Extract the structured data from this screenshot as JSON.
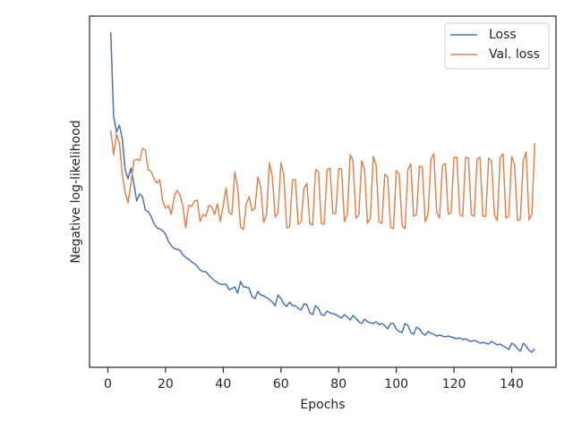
{
  "chart_data": {
    "type": "line",
    "xlabel": "Epochs",
    "ylabel": "Negative log-likelihood",
    "xlim": [
      -6.35,
      155.35
    ],
    "xticks": [
      0,
      20,
      40,
      60,
      80,
      100,
      120,
      140
    ],
    "ylim": [
      0,
      393
    ],
    "legend": "upper right",
    "grid": false,
    "x": [
      1,
      2,
      3,
      4,
      5,
      6,
      7,
      8,
      9,
      10,
      11,
      12,
      13,
      14,
      15,
      16,
      17,
      18,
      19,
      20,
      21,
      22,
      23,
      24,
      25,
      26,
      27,
      28,
      29,
      30,
      31,
      32,
      33,
      34,
      35,
      36,
      37,
      38,
      39,
      40,
      41,
      42,
      43,
      44,
      45,
      46,
      47,
      48,
      49,
      50,
      51,
      52,
      53,
      54,
      55,
      56,
      57,
      58,
      59,
      60,
      61,
      62,
      63,
      64,
      65,
      66,
      67,
      68,
      69,
      70,
      71,
      72,
      73,
      74,
      75,
      76,
      77,
      78,
      79,
      80,
      81,
      82,
      83,
      84,
      85,
      86,
      87,
      88,
      89,
      90,
      91,
      92,
      93,
      94,
      95,
      96,
      97,
      98,
      99,
      100,
      101,
      102,
      103,
      104,
      105,
      106,
      107,
      108,
      109,
      110,
      111,
      112,
      113,
      114,
      115,
      116,
      117,
      118,
      119,
      120,
      121,
      122,
      123,
      124,
      125,
      126,
      127,
      128,
      129,
      130,
      131,
      132,
      133,
      134,
      135,
      136,
      137,
      138,
      139,
      140,
      141,
      142,
      143,
      144,
      145,
      146,
      147,
      148
    ],
    "series": [
      {
        "name": "Loss",
        "color": "#4c72b0",
        "values": [
          375,
          281,
          263,
          271,
          256,
          221,
          211,
          223,
          206,
          186,
          194,
          191,
          176,
          174,
          169,
          161,
          156,
          155,
          153,
          149,
          141,
          136,
          133,
          132,
          131,
          126,
          123,
          121,
          118,
          116,
          113,
          109,
          107,
          107,
          103,
          100,
          97,
          95,
          93,
          93,
          93,
          87,
          88,
          90,
          83,
          96,
          90,
          90,
          88,
          79,
          77,
          85,
          81,
          80,
          78,
          76,
          73,
          69,
          81,
          77,
          71,
          68,
          73,
          69,
          69,
          66,
          64,
          71,
          70,
          61,
          59,
          69,
          66,
          59,
          58,
          63,
          61,
          60,
          59,
          57,
          55,
          59,
          56,
          53,
          58,
          55,
          51,
          49,
          54,
          51,
          50,
          49,
          51,
          48,
          49,
          47,
          43,
          49,
          49,
          43,
          40,
          39,
          49,
          47,
          39,
          37,
          45,
          43,
          38,
          36,
          40,
          38,
          37,
          35,
          36,
          35,
          34,
          35,
          34,
          33,
          32,
          33,
          31,
          32,
          30,
          29,
          30,
          29,
          27,
          28,
          27,
          26,
          29,
          27,
          25,
          26,
          24,
          22,
          20,
          27,
          25,
          21,
          18,
          27,
          24,
          19,
          17,
          21
        ]
      },
      {
        "name": "Val. loss",
        "color": "#dd8452",
        "values": [
          265,
          238,
          261,
          251,
          216,
          196,
          184,
          206,
          231,
          233,
          231,
          245,
          243,
          221,
          219,
          211,
          206,
          210,
          186,
          178,
          181,
          171,
          191,
          198,
          193,
          181,
          156,
          181,
          180,
          186,
          187,
          163,
          171,
          169,
          181,
          180,
          171,
          183,
          163,
          181,
          201,
          173,
          171,
          219,
          201,
          157,
          154,
          183,
          191,
          175,
          178,
          213,
          201,
          162,
          171,
          229,
          214,
          168,
          173,
          229,
          215,
          156,
          157,
          210,
          210,
          160,
          163,
          200,
          206,
          161,
          159,
          221,
          219,
          161,
          160,
          221,
          223,
          172,
          172,
          222,
          222,
          163,
          171,
          238,
          231,
          167,
          171,
          231,
          221,
          161,
          167,
          236,
          226,
          163,
          161,
          216,
          213,
          157,
          155,
          220,
          216,
          159,
          155,
          221,
          228,
          169,
          171,
          225,
          224,
          163,
          171,
          233,
          239,
          173,
          167,
          226,
          228,
          171,
          174,
          235,
          235,
          171,
          169,
          235,
          234,
          171,
          169,
          233,
          235,
          169,
          169,
          234,
          231,
          171,
          164,
          235,
          239,
          167,
          169,
          236,
          227,
          164,
          166,
          231,
          241,
          165,
          172,
          251
        ]
      }
    ]
  }
}
